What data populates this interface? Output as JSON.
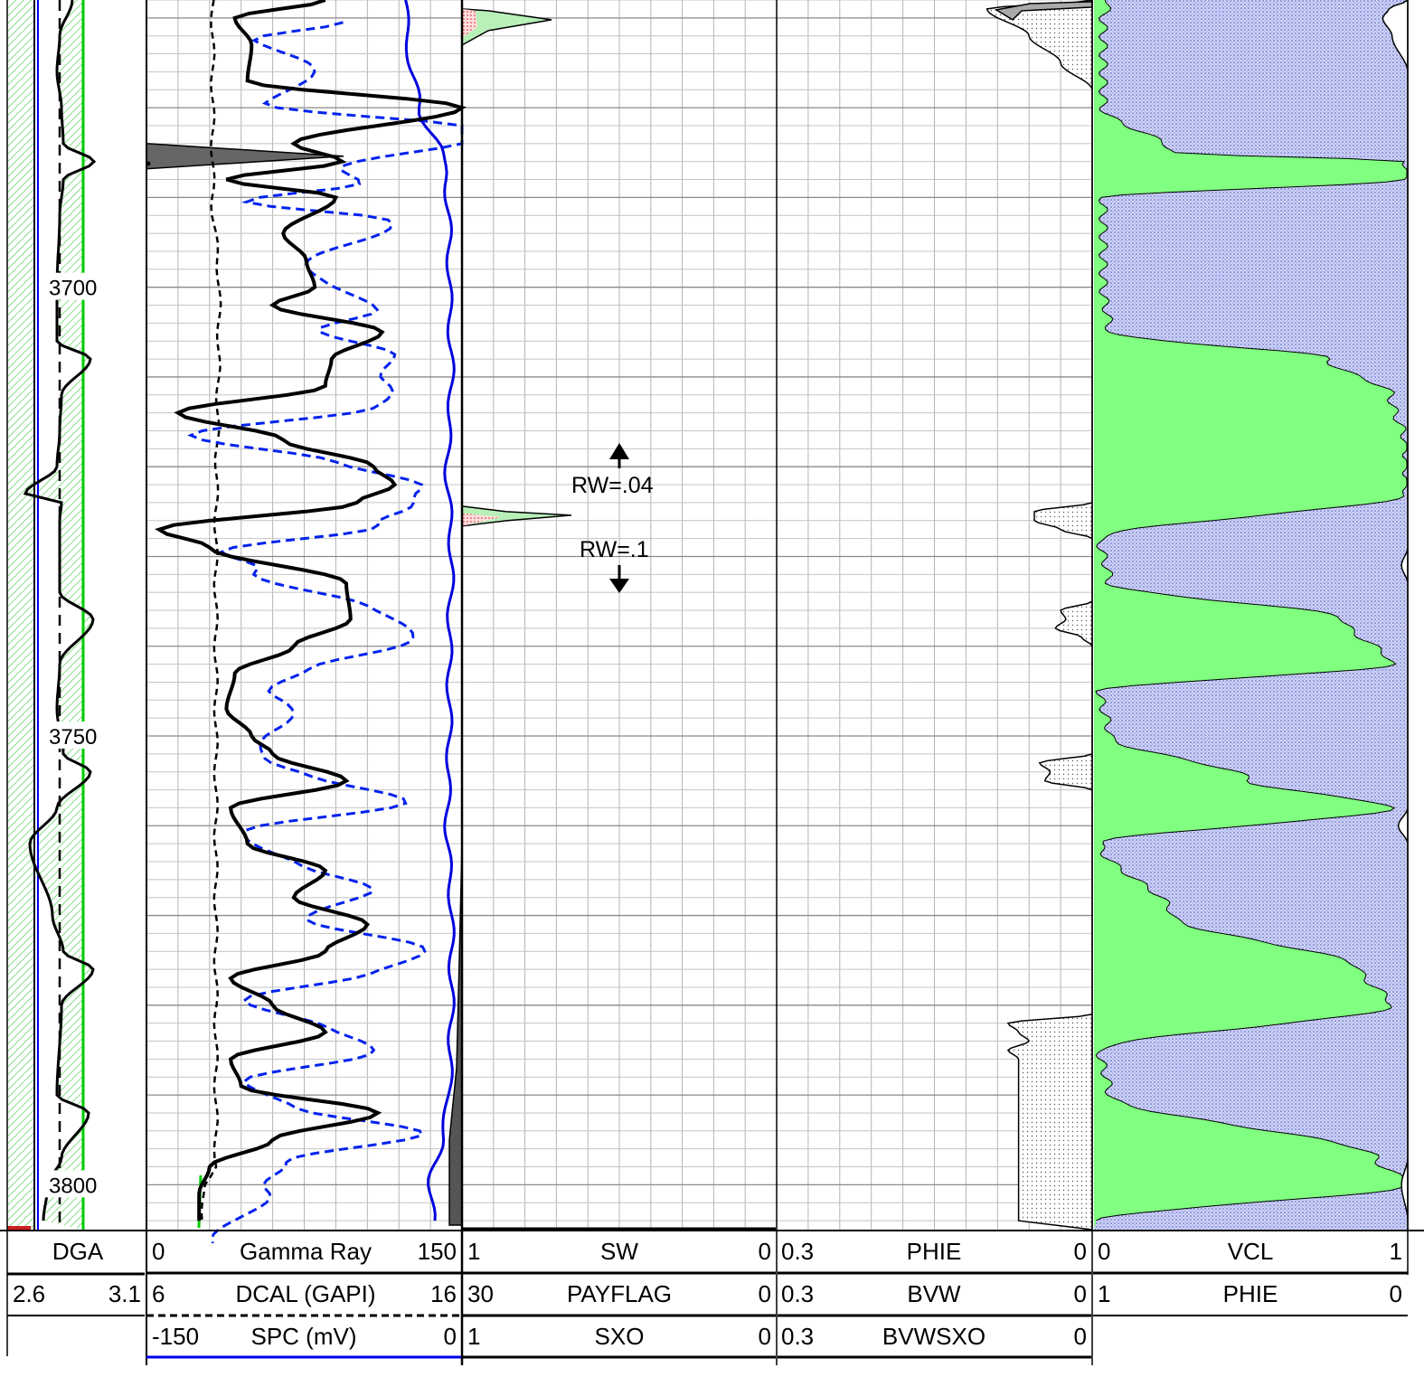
{
  "chart_data": {
    "type": "line",
    "depth_axis": {
      "min": 3668,
      "max": 3805,
      "labels": [
        "3700",
        "3750",
        "3800"
      ]
    },
    "tracks": [
      {
        "id": "track1",
        "curves": [
          {
            "name": "DGA",
            "min": "2.6",
            "max": "3.1",
            "line_style": "solid",
            "color": "#000000"
          }
        ]
      },
      {
        "id": "track2",
        "curves": [
          {
            "name": "Gamma Ray",
            "min": "0",
            "max": "150",
            "line_style": "solid",
            "color": "#000000",
            "depth": [
              3668,
              3670,
              3673,
              3677,
              3680,
              3684,
              3686,
              3688,
              3690,
              3694,
              3697,
              3700,
              3702,
              3705,
              3708,
              3711,
              3714,
              3717,
              3720,
              3722,
              3724,
              3727,
              3729,
              3733,
              3737,
              3740,
              3743,
              3747,
              3750,
              3752,
              3755,
              3758,
              3762,
              3765,
              3768,
              3771,
              3774,
              3777,
              3780,
              3783,
              3786,
              3789,
              3792,
              3795,
              3798,
              3801,
              3804
            ],
            "value": [
              85,
              42,
              50,
              48,
              150,
              70,
              93,
              38,
              90,
              65,
              76,
              80,
              60,
              112,
              88,
              85,
              15,
              65,
              108,
              118,
              100,
              6,
              30,
              95,
              97,
              70,
              42,
              38,
              50,
              60,
              95,
              40,
              48,
              85,
              70,
              105,
              85,
              40,
              60,
              85,
              40,
              45,
              110,
              60,
              30,
              25,
              25
            ]
          },
          {
            "name": "DCAL (GAPI)",
            "min": "6",
            "max": "16",
            "line_style": "dashed",
            "color": "#000000",
            "depth": [
              3668,
              3690,
              3700,
              3730,
              3760,
              3790,
              3798,
              3800,
              3804
            ],
            "value": [
              8.1,
              8.1,
              8.3,
              8.2,
              8.2,
              8.2,
              8.2,
              7.8,
              7.8
            ]
          },
          {
            "name": "SPC (mV)",
            "min": "-150",
            "max": "0",
            "line_style": "solid",
            "color": "#0000ff",
            "depth": [
              3668,
              3675,
              3680,
              3685,
              3688,
              3690,
              3695,
              3700,
              3710,
              3720,
              3730,
              3740,
              3750,
              3760,
              3770,
              3780,
              3790,
              3795,
              3800,
              3804
            ],
            "value": [
              -27,
              -25,
              -20,
              -10,
              -7,
              -7,
              -6,
              -6,
              -5,
              -7,
              -5,
              -6,
              -6,
              -7,
              -5,
              -5,
              -6,
              -10,
              -15,
              -14
            ]
          }
        ]
      },
      {
        "id": "track3",
        "curves": [
          {
            "name": "SW",
            "min": "1",
            "max": "0",
            "line_style": "solid",
            "color": "#000000"
          },
          {
            "name": "PAYFLAG",
            "min": "30",
            "max": "0",
            "line_style": "solid",
            "color": "#000000"
          },
          {
            "name": "SXO",
            "min": "1",
            "max": "0",
            "line_style": "solid",
            "color": "#000000"
          }
        ],
        "annotations": [
          {
            "text": "RW=.04",
            "direction": "up"
          },
          {
            "text": "RW=.1",
            "direction": "down"
          }
        ]
      },
      {
        "id": "track4",
        "curves": [
          {
            "name": "PHIE",
            "min": "0.3",
            "max": "0",
            "line_style": "solid",
            "color": "#000000"
          },
          {
            "name": "BVW",
            "min": "0.3",
            "max": "0",
            "line_style": "solid",
            "color": "#000000"
          },
          {
            "name": "BVWSXO",
            "min": "0.3",
            "max": "0",
            "line_style": "solid",
            "color": "#000000"
          }
        ]
      },
      {
        "id": "track5",
        "curves": [
          {
            "name": "VCL",
            "min": "0",
            "max": "1",
            "line_style": "solid",
            "color": "#000000",
            "depth": [
              3668,
              3670,
              3680,
              3685,
              3686,
              3688,
              3690,
              3700,
              3705,
              3708,
              3712,
              3718,
              3723,
              3728,
              3733,
              3737,
              3742,
              3745,
              3750,
              3755,
              3758,
              3762,
              3770,
              3776,
              3780,
              3785,
              3790,
              3797,
              3800,
              3804
            ],
            "value": [
              0.05,
              0.03,
              0.03,
              0.25,
              1.0,
              1.0,
              0.03,
              0.03,
              0.05,
              0.75,
              0.95,
              1.0,
              1.0,
              0.02,
              0.05,
              0.8,
              0.95,
              0.02,
              0.05,
              0.5,
              0.95,
              0.02,
              0.25,
              0.85,
              0.95,
              0.02,
              0.05,
              0.9,
              1.0,
              0.02
            ]
          },
          {
            "name": "PHIE",
            "min": "1",
            "max": "0",
            "line_style": "solid",
            "color": "#000000"
          }
        ]
      }
    ],
    "fill_colors": {
      "shale": "#80ff80",
      "porosity": "#c8ccf0",
      "dga_fill": "#b8f0b8",
      "cutoff": "#00cc00",
      "pay": "#ff4040",
      "bvw": "#a8a8a8"
    }
  }
}
